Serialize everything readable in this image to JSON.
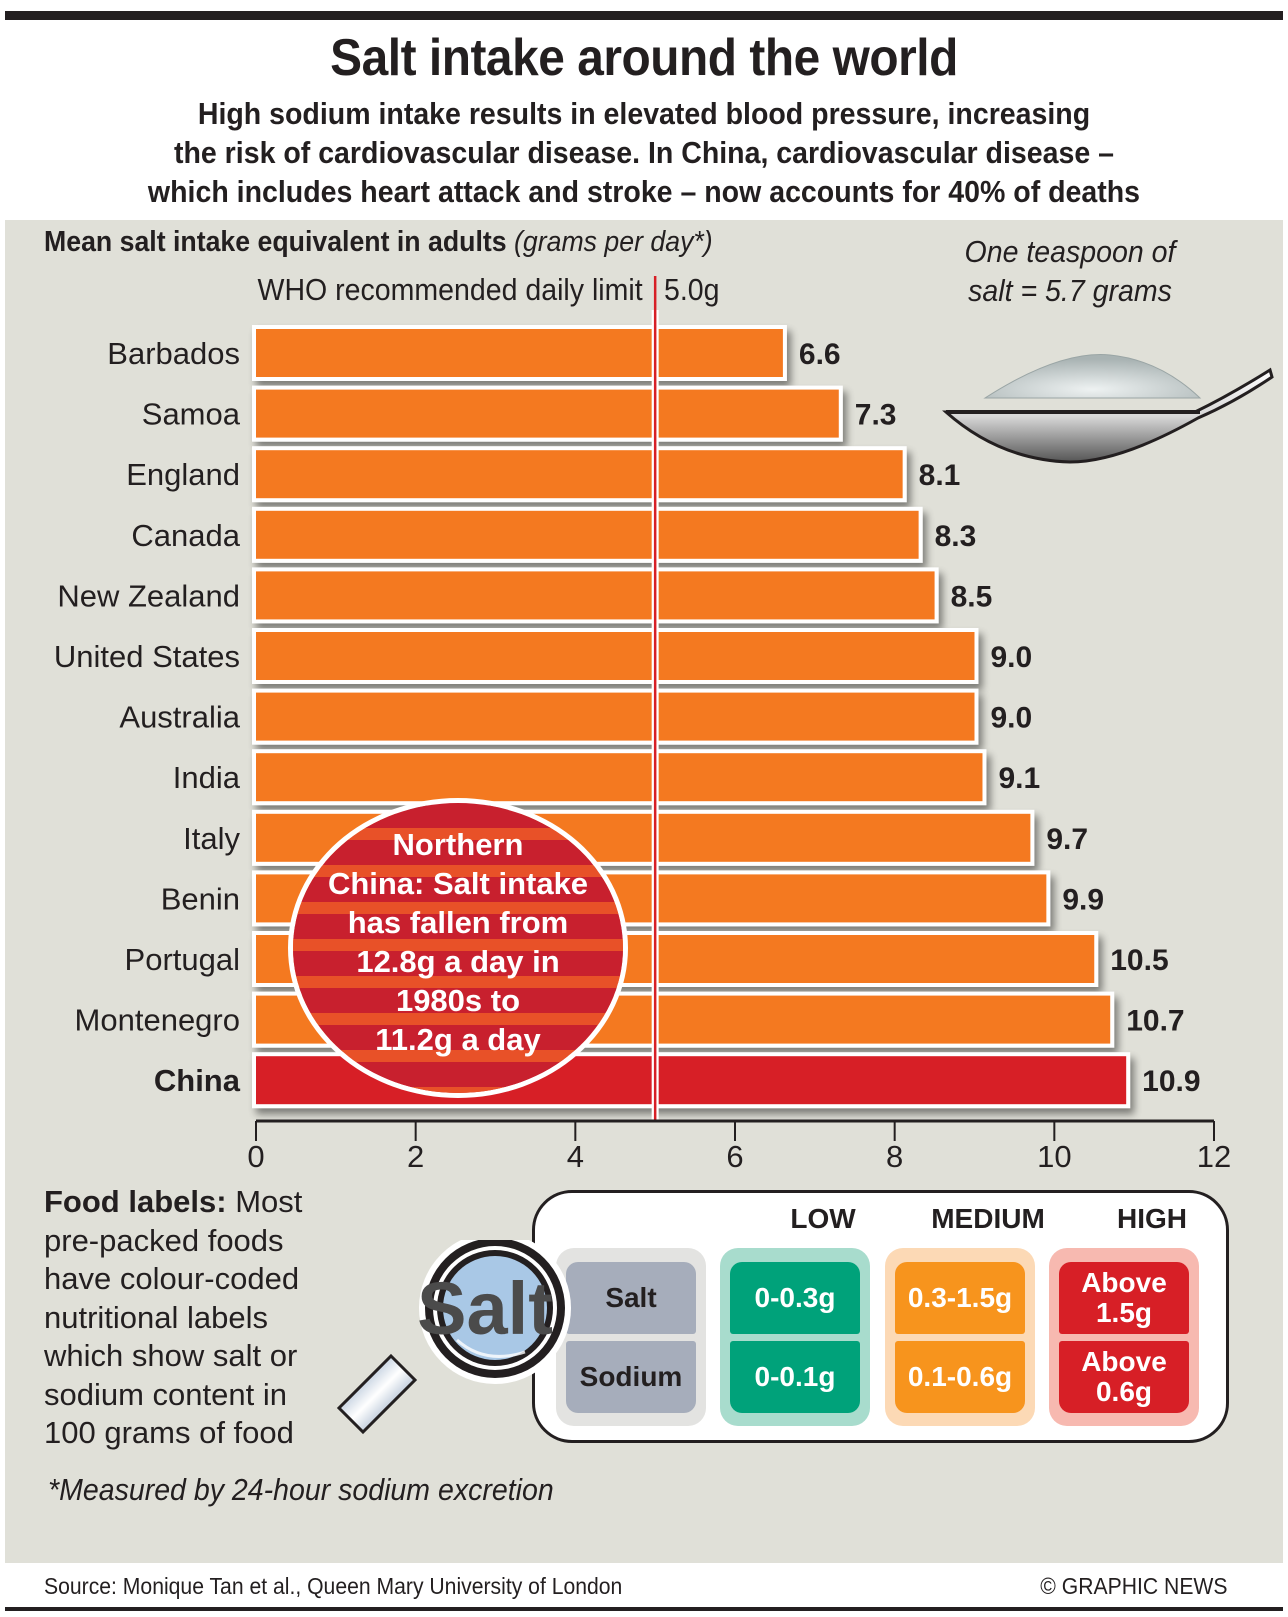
{
  "header": {
    "title": "Salt intake around the world",
    "subtitle_lines": [
      "High sodium intake results in elevated blood pressure, increasing",
      "the risk of cardiovascular disease. In China, cardiovascular disease –",
      "which includes heart attack and stroke – now accounts for 40% of deaths"
    ]
  },
  "chart_data": {
    "type": "bar",
    "orientation": "horizontal",
    "title": "Mean salt intake equivalent in adults",
    "title_unit": "(grams per day*)",
    "xlabel": "",
    "ylabel": "",
    "xlim": [
      0,
      12
    ],
    "x_ticks": [
      0,
      2,
      4,
      6,
      8,
      10,
      12
    ],
    "grid": false,
    "categories": [
      "Barbados",
      "Samoa",
      "England",
      "Canada",
      "New Zealand",
      "United States",
      "Australia",
      "India",
      "Italy",
      "Benin",
      "Portugal",
      "Montenegro",
      "China"
    ],
    "values": [
      6.6,
      7.3,
      8.1,
      8.3,
      8.5,
      9.0,
      9.0,
      9.1,
      9.7,
      9.9,
      10.5,
      10.7,
      10.9
    ],
    "value_labels": [
      "6.6",
      "7.3",
      "8.1",
      "8.3",
      "8.5",
      "9.0",
      "9.0",
      "9.1",
      "9.7",
      "9.9",
      "10.5",
      "10.7",
      "10.9"
    ],
    "highlight": "China",
    "colors": {
      "bar": "#f47920",
      "highlight_bar": "#d71f26",
      "reference_line": "#d71f26"
    },
    "reference_line": {
      "value": 5.0,
      "label": "WHO recommended daily limit",
      "value_label": "5.0g"
    },
    "annotation": "Northern China: Salt intake has fallen from 12.8g a day in 1980s to 11.2g a day"
  },
  "bubble": {
    "lines": [
      "Northern",
      "China: Salt intake",
      "has fallen from",
      "12.8g a day in",
      "1980s to",
      "11.2g a day"
    ]
  },
  "teaspoon": {
    "lines": [
      "One teaspoon of",
      "salt = 5.7 grams"
    ],
    "icon": "salt-teaspoon-icon"
  },
  "food_labels": {
    "heading": "Food labels:",
    "text_first": " Most",
    "text_lines": [
      "pre-packed foods",
      "have colour-coded",
      "nutritional labels",
      "which show salt or",
      "sodium content in",
      "100 grams of food"
    ],
    "magnifier_text": "Salt",
    "row_labels": [
      "Salt",
      "Sodium"
    ],
    "levels": [
      {
        "name": "LOW",
        "color": "#00a27a",
        "salt": "0-0.3g",
        "sodium": "0-0.1g"
      },
      {
        "name": "MEDIUM",
        "color": "#f7941d",
        "salt": "0.3-1.5g",
        "sodium": "0.1-0.6g"
      },
      {
        "name": "HIGH",
        "color": "#d71f26",
        "salt": "Above 1.5g",
        "sodium": "Above 0.6g"
      }
    ]
  },
  "footer": {
    "footnote": "*Measured by 24-hour sodium excretion",
    "source": "Source: Monique Tan et al., Queen Mary University of London",
    "credit": "© GRAPHIC NEWS"
  }
}
